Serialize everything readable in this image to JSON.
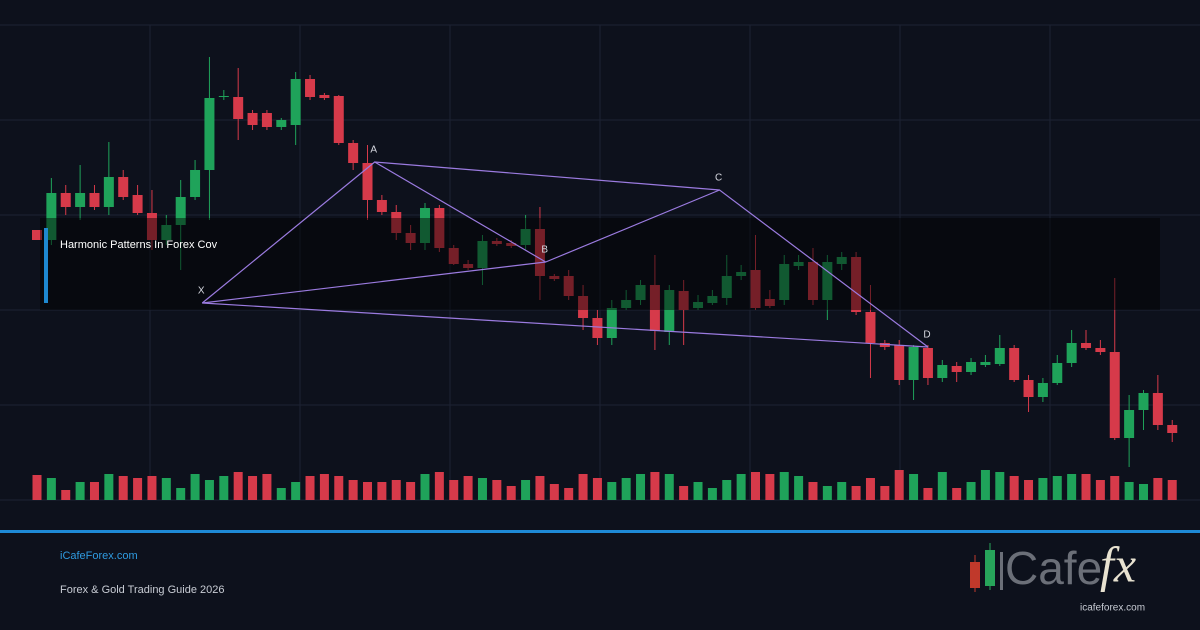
{
  "overlay_title": "Harmonic Patterns In Forex Cov",
  "footer": {
    "site": "iCafeForex.com",
    "subtitle": "Forex & Gold Trading Guide 2026"
  },
  "logo": {
    "word": "Cafe",
    "mark": "fx",
    "url": "icafeforex.com"
  },
  "chart_data": {
    "type": "candlestick",
    "up_color": "#1fa35a",
    "down_color": "#d63a4a",
    "ylim": [
      0,
      480
    ],
    "volume_lim": [
      0,
      100
    ],
    "open": [
      250,
      240,
      287,
      273,
      287,
      273,
      303,
      285,
      267,
      240,
      255,
      283,
      310,
      383,
      383,
      367,
      367,
      353,
      355,
      401,
      385,
      384,
      337,
      317,
      280,
      268,
      247,
      237,
      272,
      232,
      216,
      212,
      239,
      237,
      235,
      251,
      204,
      204,
      184,
      162,
      142,
      172,
      180,
      195,
      148,
      189,
      172,
      177,
      182,
      204,
      210,
      181,
      180,
      214,
      218,
      180,
      216,
      223,
      168,
      137,
      135,
      100,
      132,
      102,
      114,
      108,
      115,
      116,
      132,
      100,
      83,
      97,
      117,
      137,
      132,
      128,
      42,
      70,
      87,
      55
    ],
    "high": [
      250,
      302,
      295,
      315,
      295,
      338,
      310,
      295,
      290,
      265,
      300,
      320,
      423,
      390,
      412,
      370,
      370,
      362,
      408,
      405,
      387,
      385,
      340,
      335,
      285,
      275,
      255,
      277,
      275,
      235,
      220,
      245,
      242,
      240,
      265,
      273,
      206,
      210,
      195,
      170,
      180,
      190,
      200,
      225,
      195,
      200,
      185,
      190,
      225,
      215,
      245,
      190,
      225,
      225,
      232,
      225,
      228,
      228,
      195,
      140,
      140,
      135,
      135,
      120,
      118,
      122,
      125,
      145,
      135,
      105,
      102,
      125,
      150,
      150,
      140,
      202,
      85,
      90,
      105,
      60
    ],
    "low": [
      240,
      235,
      265,
      260,
      270,
      265,
      280,
      265,
      230,
      235,
      210,
      280,
      260,
      380,
      340,
      350,
      350,
      350,
      335,
      380,
      380,
      335,
      310,
      260,
      265,
      240,
      230,
      230,
      228,
      215,
      210,
      195,
      234,
      232,
      230,
      180,
      199,
      180,
      150,
      135,
      135,
      170,
      175,
      130,
      135,
      135,
      170,
      175,
      175,
      200,
      170,
      172,
      175,
      210,
      175,
      160,
      210,
      165,
      102,
      130,
      95,
      80,
      95,
      98,
      98,
      105,
      113,
      114,
      98,
      68,
      78,
      95,
      113,
      130,
      125,
      40,
      13,
      50,
      50,
      38
    ],
    "close": [
      240,
      287,
      273,
      287,
      273,
      303,
      283,
      267,
      240,
      255,
      283,
      310,
      382,
      384,
      361,
      355,
      353,
      360,
      401,
      383,
      382,
      337,
      317,
      280,
      268,
      247,
      237,
      272,
      232,
      216,
      212,
      239,
      236,
      234,
      251,
      204,
      201,
      184,
      162,
      142,
      172,
      180,
      195,
      149,
      190,
      170,
      178,
      184,
      204,
      208,
      172,
      174,
      216,
      218,
      180,
      218,
      223,
      168,
      137,
      133,
      100,
      133,
      102,
      115,
      108,
      118,
      118,
      132,
      100,
      83,
      97,
      117,
      137,
      132,
      128,
      42,
      70,
      87,
      55,
      47
    ],
    "volume": [
      25,
      22,
      10,
      18,
      18,
      26,
      24,
      22,
      24,
      22,
      12,
      26,
      20,
      24,
      28,
      24,
      26,
      12,
      18,
      24,
      26,
      24,
      20,
      18,
      18,
      20,
      18,
      26,
      28,
      20,
      24,
      22,
      20,
      14,
      20,
      24,
      16,
      12,
      26,
      22,
      18,
      22,
      26,
      28,
      26,
      14,
      18,
      12,
      20,
      26,
      28,
      26,
      28,
      24,
      18,
      14,
      18,
      14,
      22,
      14,
      30,
      26,
      12,
      28,
      12,
      18,
      30,
      28,
      24,
      20,
      22,
      24,
      26,
      26,
      20,
      24,
      18,
      16,
      22,
      20
    ],
    "pattern_color": "#9b7be0",
    "pattern": [
      {
        "label": "X",
        "index": 11.5,
        "price": 177
      },
      {
        "label": "A",
        "index": 23.5,
        "price": 318
      },
      {
        "label": "B",
        "index": 35.4,
        "price": 218
      },
      {
        "label": "C",
        "index": 47.5,
        "price": 290
      },
      {
        "label": "D",
        "index": 62,
        "price": 133
      }
    ]
  }
}
